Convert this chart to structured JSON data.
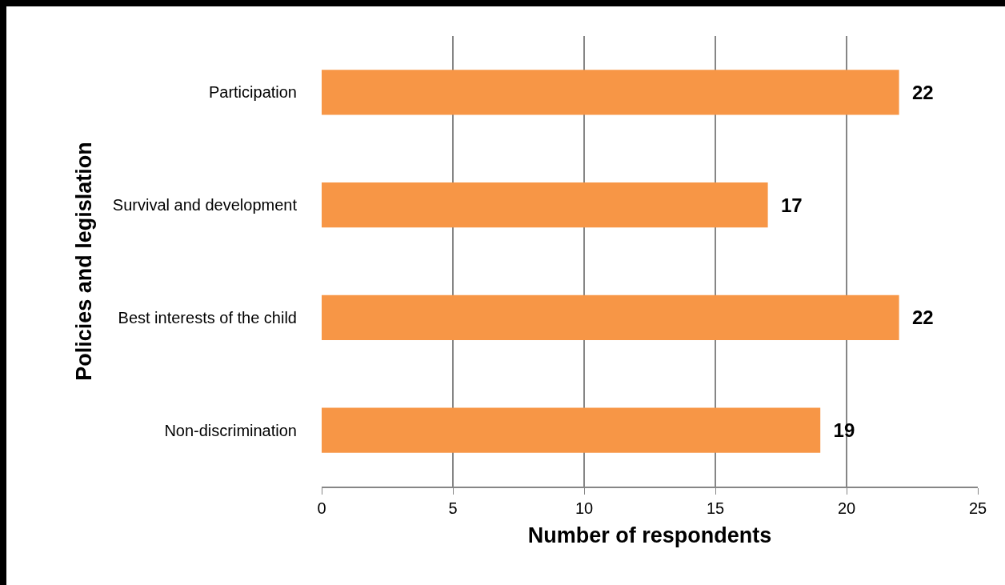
{
  "chart_data": {
    "type": "bar",
    "orientation": "horizontal",
    "xlabel": "Number of respondents",
    "ylabel": "Policies and legislation",
    "categories": [
      "Participation",
      "Survival and development",
      "Best interests of the child",
      "Non-discrimination"
    ],
    "values": [
      22,
      17,
      22,
      19
    ],
    "color": "#f79646",
    "xlim": [
      0,
      25
    ],
    "xticks": [
      0,
      5,
      10,
      15,
      20,
      25
    ],
    "grid": "x",
    "data_labels": true
  }
}
